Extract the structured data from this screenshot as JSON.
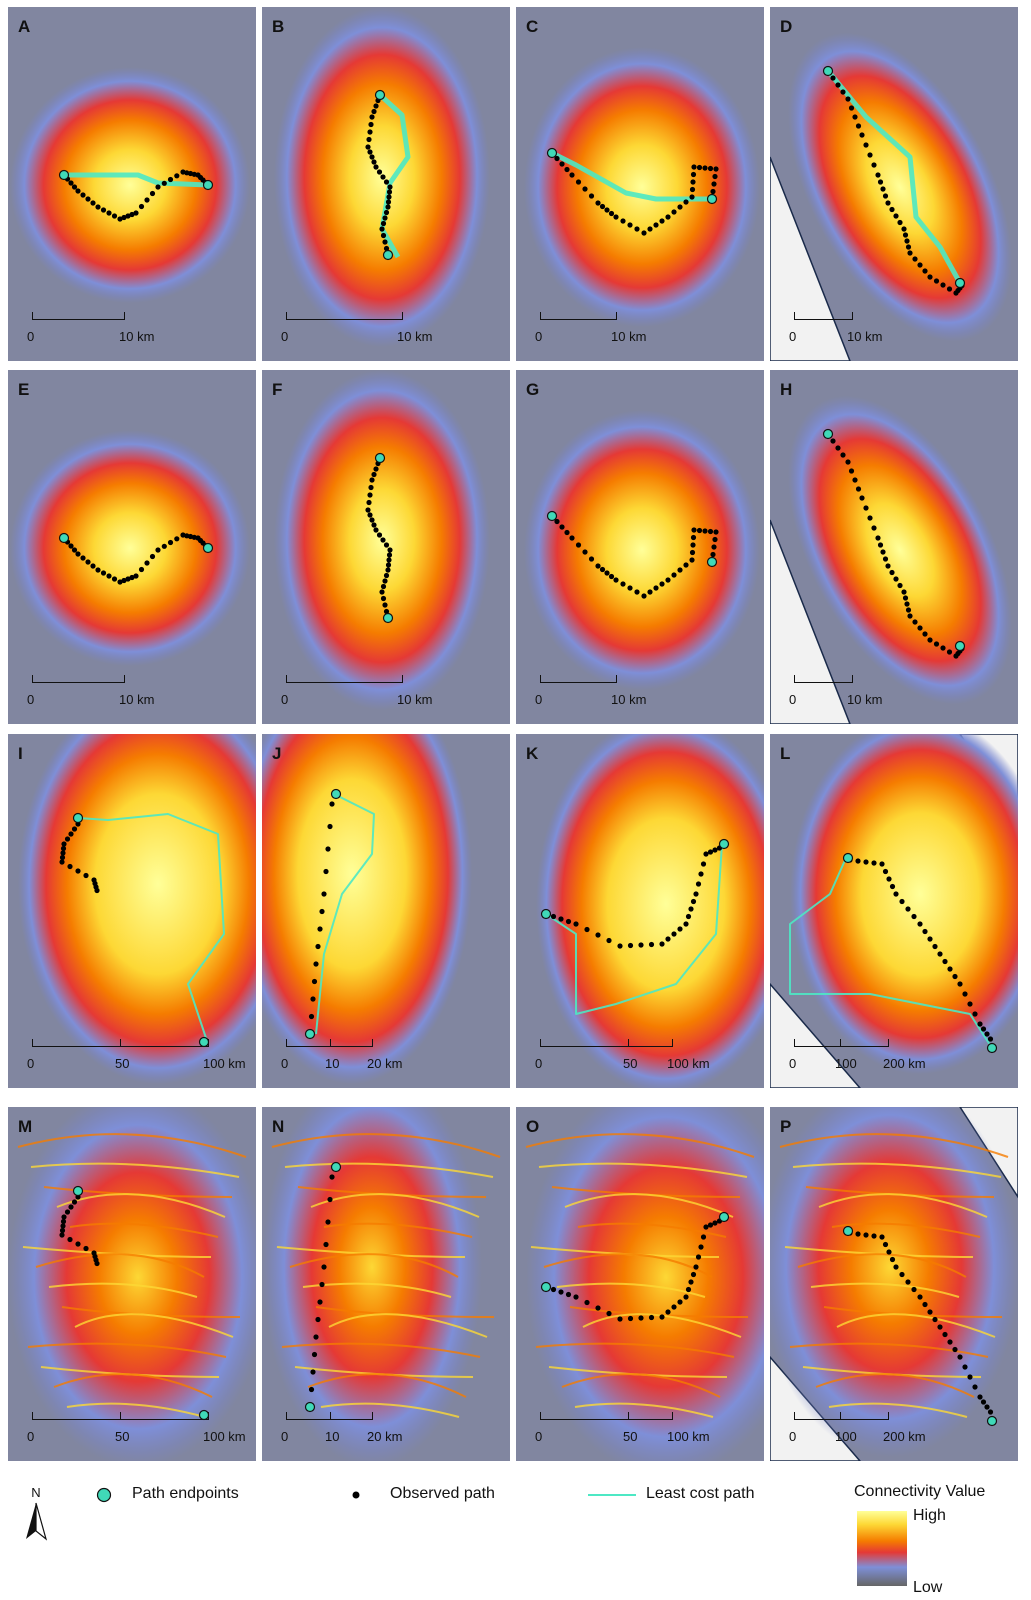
{
  "panels": [
    {
      "label": "A",
      "kind": "kde",
      "lcp": true,
      "scale": {
        "labels": [
          "0",
          "10 km"
        ]
      }
    },
    {
      "label": "B",
      "kind": "kde",
      "lcp": true,
      "scale": {
        "labels": [
          "0",
          "10 km"
        ]
      }
    },
    {
      "label": "C",
      "kind": "kde",
      "lcp": true,
      "scale": {
        "labels": [
          "0",
          "10 km"
        ]
      }
    },
    {
      "label": "D",
      "kind": "kde",
      "lcp": true,
      "scale": {
        "labels": [
          "0",
          "10 km"
        ]
      }
    },
    {
      "label": "E",
      "kind": "kde",
      "lcp": false,
      "scale": {
        "labels": [
          "0",
          "10 km"
        ]
      }
    },
    {
      "label": "F",
      "kind": "kde",
      "lcp": false,
      "scale": {
        "labels": [
          "0",
          "10 km"
        ]
      }
    },
    {
      "label": "G",
      "kind": "kde",
      "lcp": false,
      "scale": {
        "labels": [
          "0",
          "10 km"
        ]
      }
    },
    {
      "label": "H",
      "kind": "kde",
      "lcp": false,
      "scale": {
        "labels": [
          "0",
          "10 km"
        ]
      }
    },
    {
      "label": "I",
      "kind": "regional",
      "lcp": true,
      "scale": {
        "labels": [
          "0",
          "50",
          "100 km"
        ]
      }
    },
    {
      "label": "J",
      "kind": "regional",
      "lcp": true,
      "scale": {
        "labels": [
          "0",
          "10",
          "20 km"
        ]
      }
    },
    {
      "label": "K",
      "kind": "regional",
      "lcp": true,
      "scale": {
        "labels": [
          "0",
          "50",
          "100 km"
        ]
      }
    },
    {
      "label": "L",
      "kind": "regional",
      "lcp": true,
      "scale": {
        "labels": [
          "0",
          "100",
          "200 km"
        ]
      }
    },
    {
      "label": "M",
      "kind": "circuit",
      "lcp": false,
      "scale": {
        "labels": [
          "0",
          "50",
          "100 km"
        ]
      }
    },
    {
      "label": "N",
      "kind": "circuit",
      "lcp": false,
      "scale": {
        "labels": [
          "0",
          "10",
          "20 km"
        ]
      }
    },
    {
      "label": "O",
      "kind": "circuit",
      "lcp": false,
      "scale": {
        "labels": [
          "0",
          "50",
          "100 km"
        ]
      }
    },
    {
      "label": "P",
      "kind": "circuit",
      "lcp": false,
      "scale": {
        "labels": [
          "0",
          "100",
          "200 km"
        ]
      }
    }
  ],
  "legend": {
    "north": "N",
    "endpoints_label": "Path endpoints",
    "observed_label": "Observed path",
    "lcp_label": "Least cost path",
    "connectivity_title": "Connectivity Value",
    "high_label": "High",
    "low_label": "Low"
  },
  "colors": {
    "endpoint": "#40d9b8",
    "observed": "#000000",
    "lcp": "#4de8c4",
    "high": "#ffff99",
    "mid": "#e53935",
    "low": "#666666",
    "blue": "#7e8fd8"
  }
}
